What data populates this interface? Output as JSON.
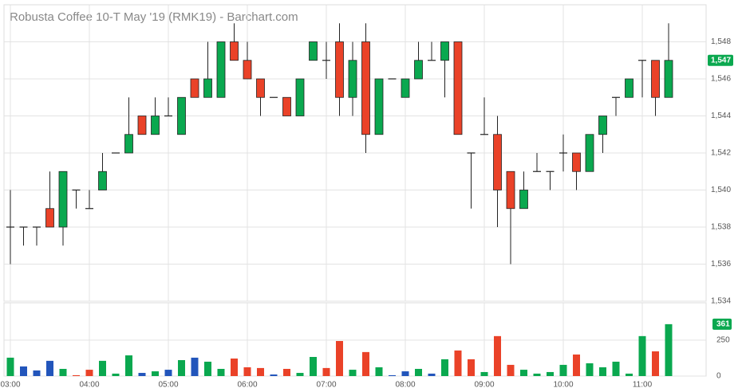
{
  "chart_data": {
    "type": "candlestick",
    "title": "Robusta Coffee 10-T May '19 (RMK19) - Barchart.com",
    "categories": [
      "03:00",
      null,
      null,
      null,
      null,
      null,
      "04:00",
      null,
      null,
      null,
      null,
      null,
      "05:00",
      null,
      null,
      null,
      null,
      null,
      "06:00",
      null,
      null,
      null,
      null,
      null,
      "07:00",
      null,
      null,
      null,
      null,
      null,
      "08:00",
      null,
      null,
      null,
      null,
      null,
      "09:00",
      null,
      null,
      null,
      null,
      null,
      "10:00",
      null,
      null,
      null,
      null,
      null,
      "11:00",
      null,
      null
    ],
    "open": [
      1538,
      1538,
      1538,
      1539,
      1538,
      1540,
      1539,
      1540,
      1542,
      1542,
      1544,
      1543,
      1544,
      1543,
      1546,
      1545,
      1545,
      1548,
      1547,
      1546,
      1545,
      1545,
      1544,
      1547,
      1547,
      1548,
      1545,
      1548,
      1543,
      1546,
      1545,
      1546,
      1547,
      1547,
      1548,
      1542,
      1543,
      1543,
      1541,
      1539,
      1541,
      1541,
      1542,
      1542,
      1541,
      1543,
      1545,
      1545,
      1547,
      1547,
      1545
    ],
    "high": [
      1540,
      1538,
      1538,
      1541,
      1541,
      1540,
      1540,
      1542,
      1542,
      1545,
      1544,
      1545,
      1545,
      1545,
      1546,
      1548,
      1548,
      1549,
      1548,
      1546,
      1545,
      1545,
      1546,
      1548,
      1548,
      1549,
      1548,
      1549,
      1546,
      1546,
      1546,
      1548,
      1548,
      1548,
      1548,
      1542,
      1545,
      1544,
      1541,
      1541,
      1542,
      1541,
      1543,
      1542,
      1543,
      1544,
      1545,
      1546,
      1547,
      1547,
      1549
    ],
    "low": [
      1536,
      1537,
      1537,
      1538,
      1537,
      1539,
      1539,
      1540,
      1542,
      1542,
      1543,
      1543,
      1544,
      1543,
      1545,
      1545,
      1545,
      1547,
      1546,
      1544,
      1545,
      1544,
      1544,
      1547,
      1546,
      1544,
      1544,
      1542,
      1543,
      1546,
      1545,
      1546,
      1547,
      1545,
      1543,
      1539,
      1543,
      1538,
      1536,
      1539,
      1541,
      1540,
      1541,
      1540,
      1541,
      1542,
      1544,
      1545,
      1545,
      1544,
      1545
    ],
    "close": [
      1538,
      1538,
      1538,
      1538,
      1541,
      1540,
      1539,
      1541,
      1542,
      1543,
      1543,
      1544,
      1544,
      1545,
      1545,
      1546,
      1548,
      1547,
      1546,
      1545,
      1545,
      1544,
      1546,
      1548,
      1547,
      1545,
      1547,
      1543,
      1546,
      1546,
      1546,
      1547,
      1547,
      1548,
      1543,
      1542,
      1543,
      1540,
      1539,
      1540,
      1541,
      1541,
      1542,
      1541,
      1543,
      1544,
      1545,
      1546,
      1547,
      1545,
      1547
    ],
    "up_color": "#0aa84f",
    "down_color": "#ea4228",
    "flat_color": "#222222",
    "ylim": [
      1534,
      1550
    ],
    "yticks": [
      {
        "value": 1534,
        "label": "1,534"
      },
      {
        "value": 1536,
        "label": "1,536"
      },
      {
        "value": 1538,
        "label": "1,538"
      },
      {
        "value": 1540,
        "label": "1,540"
      },
      {
        "value": 1542,
        "label": "1,542"
      },
      {
        "value": 1544,
        "label": "1,544"
      },
      {
        "value": 1546,
        "label": "1,546"
      },
      {
        "value": 1548,
        "label": "1,548"
      }
    ],
    "last_price_label": "1,547",
    "grid": true,
    "volume": {
      "values": [
        128,
        67,
        39,
        106,
        50,
        6,
        44,
        106,
        17,
        144,
        22,
        33,
        44,
        111,
        128,
        100,
        50,
        122,
        61,
        56,
        11,
        50,
        22,
        133,
        56,
        244,
        44,
        167,
        61,
        6,
        33,
        50,
        17,
        117,
        178,
        117,
        28,
        278,
        78,
        44,
        17,
        28,
        78,
        150,
        89,
        61,
        100,
        17,
        278,
        172,
        361
      ],
      "colors": [
        "#0aa84f",
        "#2255bb",
        "#2255bb",
        "#2255bb",
        "#0aa84f",
        "#ea4228",
        "#ea4228",
        "#0aa84f",
        "#0aa84f",
        "#0aa84f",
        "#2255bb",
        "#0aa84f",
        "#2255bb",
        "#0aa84f",
        "#2255bb",
        "#0aa84f",
        "#0aa84f",
        "#ea4228",
        "#ea4228",
        "#ea4228",
        "#2255bb",
        "#ea4228",
        "#0aa84f",
        "#0aa84f",
        "#ea4228",
        "#ea4228",
        "#0aa84f",
        "#ea4228",
        "#0aa84f",
        "#2255bb",
        "#2255bb",
        "#0aa84f",
        "#2255bb",
        "#0aa84f",
        "#ea4228",
        "#ea4228",
        "#0aa84f",
        "#ea4228",
        "#ea4228",
        "#0aa84f",
        "#0aa84f",
        "#0aa84f",
        "#0aa84f",
        "#ea4228",
        "#0aa84f",
        "#0aa84f",
        "#0aa84f",
        "#0aa84f",
        "#0aa84f",
        "#ea4228",
        "#0aa84f"
      ],
      "ylim": [
        0,
        510
      ],
      "yticks": [
        0,
        250
      ]
    }
  }
}
